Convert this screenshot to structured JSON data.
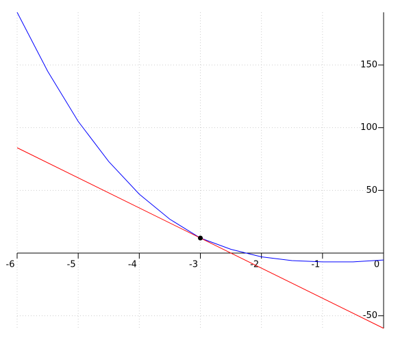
{
  "chart_data": {
    "type": "line",
    "series": [
      {
        "color": "#0000ff",
        "x": [
          -6,
          -5.5,
          -5,
          -4.5,
          -4,
          -3.5,
          -3,
          -2.5,
          -2,
          -1.5,
          -1,
          -0.5,
          0
        ],
        "values": [
          192,
          145,
          105,
          73,
          47,
          27,
          12,
          3,
          -3,
          -6,
          -7,
          -7,
          -5.5
        ]
      },
      {
        "color": "#ff0000",
        "x": [
          -6,
          0
        ],
        "values": [
          84,
          -60
        ]
      }
    ],
    "point": {
      "x": -3,
      "y": 12,
      "color": "#000000"
    },
    "xlim": [
      -6,
      0
    ],
    "ylim": [
      -60,
      192
    ],
    "xticks": [
      -6,
      -5,
      -4,
      -3,
      -2,
      -1,
      0
    ],
    "yticks": [
      -50,
      50,
      100,
      150
    ],
    "grid": true
  }
}
